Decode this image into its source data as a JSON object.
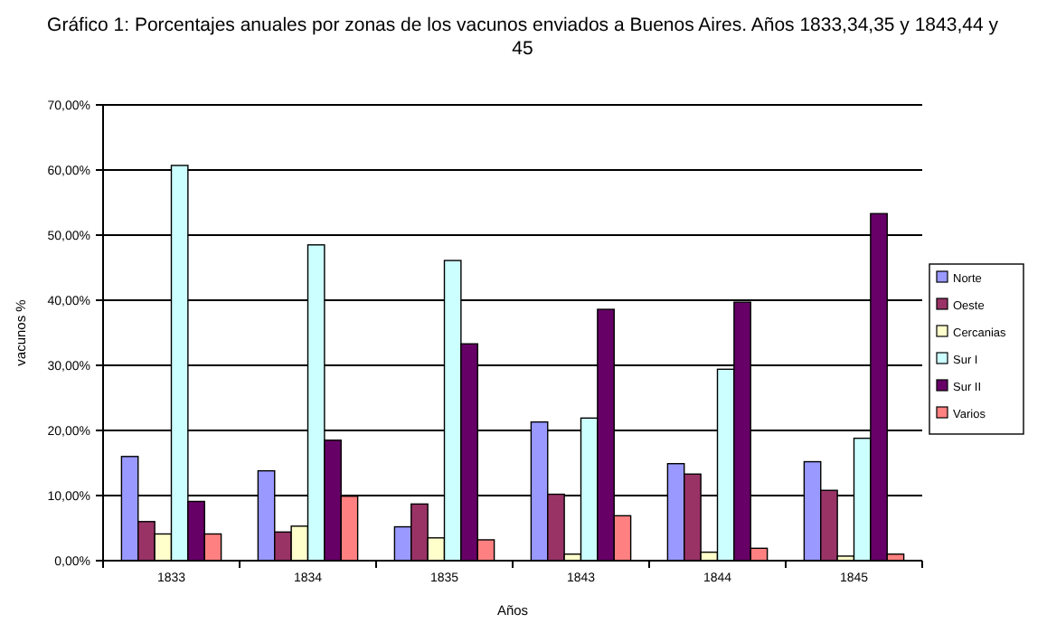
{
  "chart_data": {
    "type": "bar",
    "title": "Gráfico 1: Porcentajes anuales por zonas de los vacunos enviados a Buenos Aires. Años 1833,34,35 y 1843,44 y 45",
    "xlabel": "Años",
    "ylabel": "vacunos %",
    "categories": [
      "1833",
      "1834",
      "1835",
      "1843",
      "1844",
      "1845"
    ],
    "series": [
      {
        "name": "Norte",
        "color": "#9999ff",
        "values": [
          16.0,
          13.8,
          5.2,
          21.3,
          14.9,
          15.2
        ]
      },
      {
        "name": "Oeste",
        "color": "#993366",
        "values": [
          6.0,
          4.4,
          8.7,
          10.2,
          13.3,
          10.8
        ]
      },
      {
        "name": "Cercanias",
        "color": "#ffffcc",
        "values": [
          4.1,
          5.3,
          3.5,
          1.0,
          1.3,
          0.7
        ]
      },
      {
        "name": "Sur I",
        "color": "#ccffff",
        "values": [
          60.7,
          48.5,
          46.1,
          21.9,
          29.4,
          18.8
        ]
      },
      {
        "name": "Sur II",
        "color": "#660066",
        "values": [
          9.1,
          18.5,
          33.3,
          38.6,
          39.7,
          53.3
        ]
      },
      {
        "name": "Varios",
        "color": "#ff8080",
        "values": [
          4.1,
          9.9,
          3.2,
          6.9,
          1.9,
          1.0
        ]
      }
    ],
    "ylim": [
      0,
      70
    ],
    "yticks": [
      {
        "value": 0,
        "label": "0,00%"
      },
      {
        "value": 10,
        "label": "10,00%"
      },
      {
        "value": 20,
        "label": "20,00%"
      },
      {
        "value": 30,
        "label": "30,00%"
      },
      {
        "value": 40,
        "label": "40,00%"
      },
      {
        "value": 50,
        "label": "50,00%"
      },
      {
        "value": 60,
        "label": "60,00%"
      },
      {
        "value": 70,
        "label": "70,00%"
      }
    ],
    "grid": "y",
    "legend": "right"
  }
}
